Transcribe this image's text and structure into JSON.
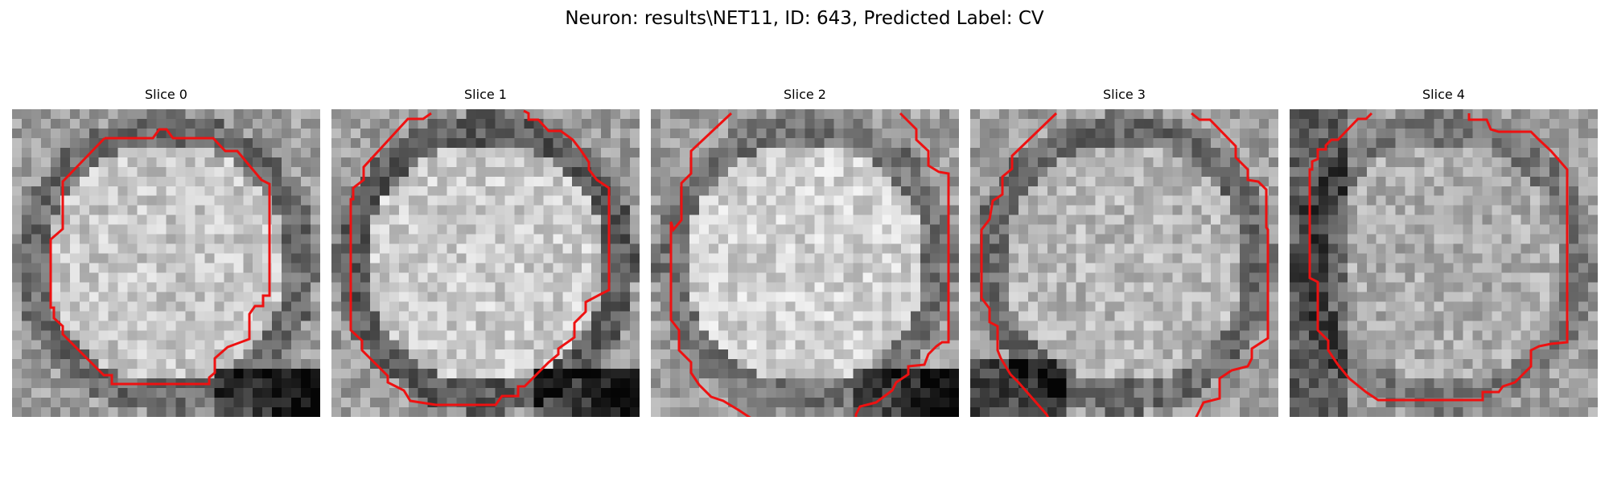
{
  "figure": {
    "title": "Neuron: results\\NET11, ID: 643, Predicted Label: CV",
    "contour_color": "#ee1111",
    "grid_size": 32
  },
  "panels": [
    {
      "title": "Slice 0",
      "seed": 11,
      "center_brightness": 0.78,
      "ring_darkness": 0.42,
      "dark_corner": "bottom-right"
    },
    {
      "title": "Slice 1",
      "seed": 23,
      "center_brightness": 0.8,
      "ring_darkness": 0.35,
      "dark_corner": "bottom-right"
    },
    {
      "title": "Slice 2",
      "seed": 37,
      "center_brightness": 0.82,
      "ring_darkness": 0.45,
      "dark_corner": "bottom-right"
    },
    {
      "title": "Slice 3",
      "seed": 41,
      "center_brightness": 0.72,
      "ring_darkness": 0.42,
      "dark_corner": "bottom-left"
    },
    {
      "title": "Slice 4",
      "seed": 53,
      "center_brightness": 0.68,
      "ring_darkness": 0.48,
      "dark_corner": "left"
    }
  ]
}
